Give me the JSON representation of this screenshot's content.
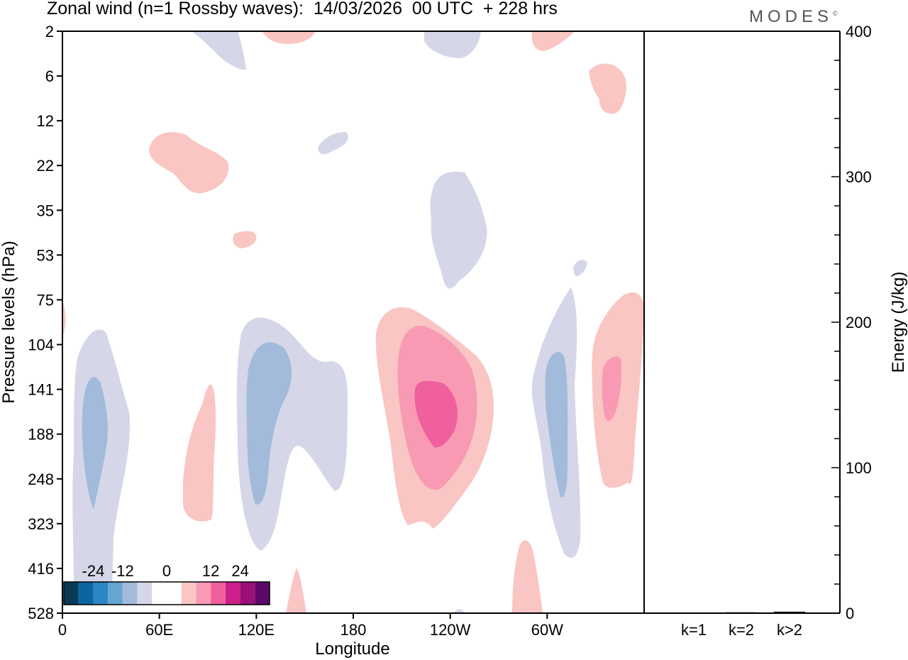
{
  "chart_data": {
    "type": "heatmap",
    "title": "Zonal wind (n=1 Rossby waves):  14/03/2026  00 UTC  + 228 hrs",
    "brand": "MODES",
    "brand_mark": "©",
    "main_plot": {
      "xlabel": "Longitude",
      "ylabel": "Pressure levels (hPa)",
      "x_tick_labels": [
        "0",
        "60E",
        "120E",
        "180",
        "120W",
        "60W"
      ],
      "y_tick_labels": [
        "2",
        "6",
        "12",
        "22",
        "35",
        "53",
        "75",
        "104",
        "141",
        "188",
        "248",
        "323",
        "416",
        "528"
      ],
      "contour_levels": [
        -24,
        -12,
        0,
        12,
        24
      ]
    },
    "colorbar": {
      "labels": [
        "-24",
        "-12",
        "0",
        "12",
        "24"
      ],
      "colors": [
        "#0b3a57",
        "#0e64a0",
        "#2a87c4",
        "#66a4d2",
        "#a2bbdb",
        "#d5d7e8",
        "#ffffff",
        "#ffffff",
        "#f9c6c3",
        "#f89ab4",
        "#f05f9e",
        "#cc1f8a",
        "#9a1076",
        "#5c0a6a"
      ]
    },
    "energy_panel": {
      "ylabel": "Energy (J/kg)",
      "y_tick_labels": [
        "0",
        "100",
        "200",
        "300",
        "400"
      ],
      "ylim": [
        0,
        400
      ],
      "categories": [
        "k=1",
        "k=2",
        "k>2"
      ],
      "values": [
        0.3,
        0.6,
        1.0
      ]
    },
    "colors": {
      "neg1": "#d5d7e8",
      "neg2": "#a2bbdb",
      "pos1": "#f9c6c3",
      "pos2": "#f89ab4",
      "pos3": "#f05f9e"
    }
  }
}
